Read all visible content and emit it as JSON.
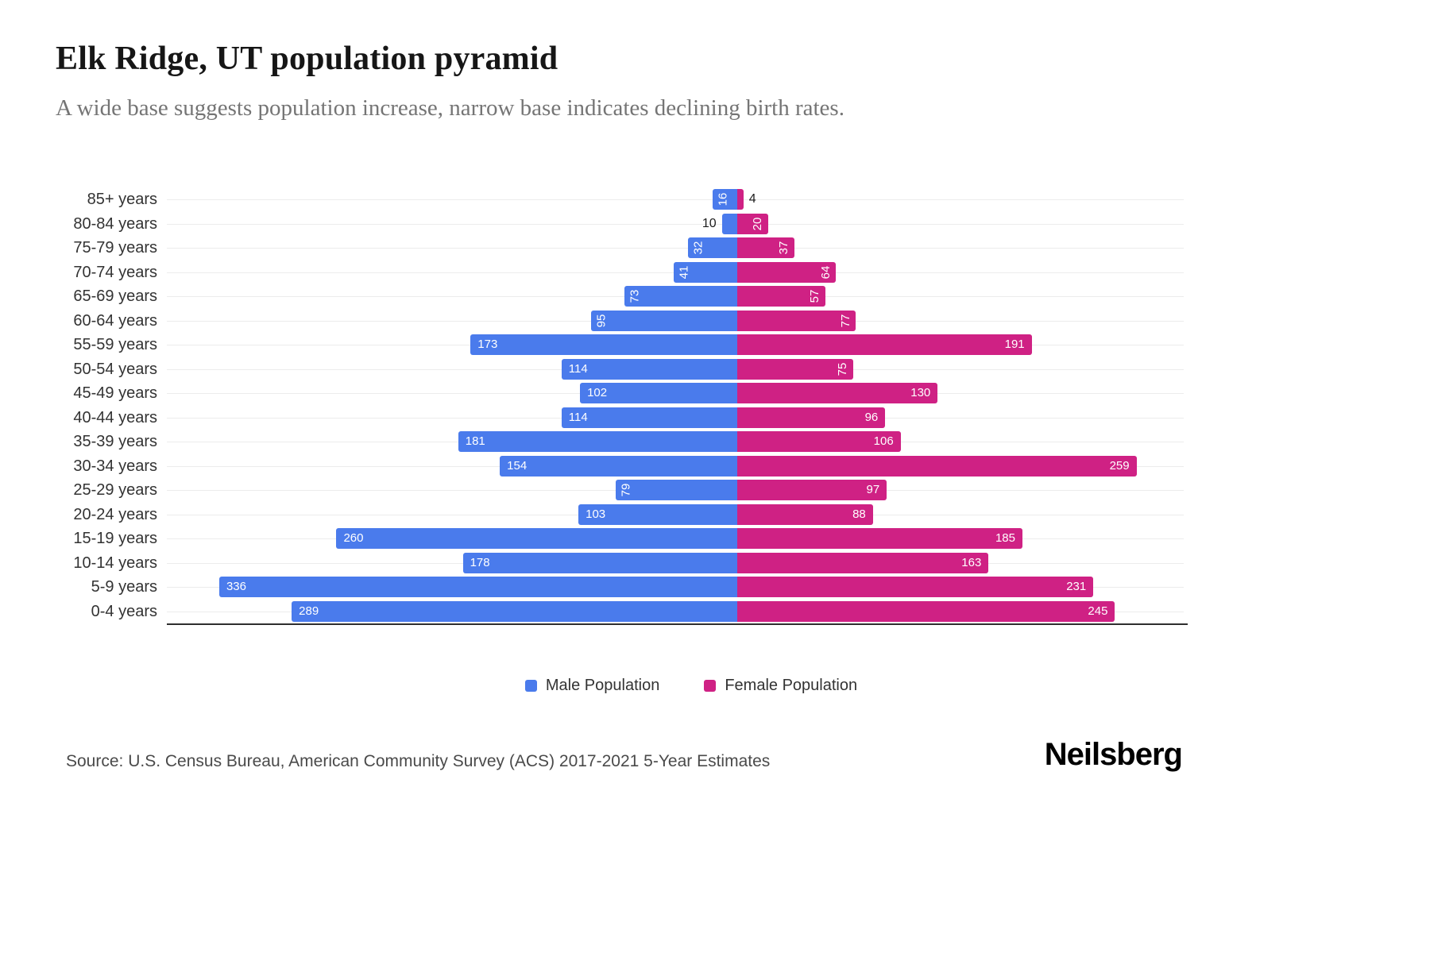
{
  "chart_data": {
    "type": "bar",
    "subtype": "population-pyramid",
    "orientation": "horizontal",
    "title": "Elk Ridge, UT population pyramid",
    "subtitle": "A wide base suggests population increase, narrow base indicates declining birth rates.",
    "categories": [
      "85+ years",
      "80-84 years",
      "75-79 years",
      "70-74 years",
      "65-69 years",
      "60-64 years",
      "55-59 years",
      "50-54 years",
      "45-49 years",
      "40-44 years",
      "35-39 years",
      "30-34 years",
      "25-29 years",
      "20-24 years",
      "15-19 years",
      "10-14 years",
      "5-9 years",
      "0-4 years"
    ],
    "series": [
      {
        "name": "Male Population",
        "color": "#4a7bec",
        "values": [
          16,
          10,
          32,
          41,
          73,
          95,
          173,
          114,
          102,
          114,
          181,
          154,
          79,
          103,
          260,
          178,
          336,
          289
        ]
      },
      {
        "name": "Female Population",
        "color": "#cf2184",
        "values": [
          4,
          20,
          37,
          64,
          57,
          77,
          191,
          75,
          130,
          96,
          106,
          259,
          97,
          88,
          185,
          163,
          231,
          245
        ]
      }
    ],
    "label_layout": [
      [
        "v",
        "out"
      ],
      [
        "out",
        "v"
      ],
      [
        "v",
        "v"
      ],
      [
        "v",
        "v"
      ],
      [
        "v",
        "v"
      ],
      [
        "v",
        "v"
      ],
      [
        "h",
        "h"
      ],
      [
        "h",
        "v"
      ],
      [
        "h",
        "h"
      ],
      [
        "h",
        "h"
      ],
      [
        "h",
        "h"
      ],
      [
        "h",
        "h"
      ],
      [
        "v",
        "h"
      ],
      [
        "h",
        "h"
      ],
      [
        "h",
        "h"
      ],
      [
        "h",
        "h"
      ],
      [
        "h",
        "h"
      ],
      [
        "h",
        "h"
      ]
    ],
    "value_label_color": "#ffffff",
    "outside_label_color": "#1c1c1c",
    "male_axis_max": 370,
    "female_axis_max": 290,
    "grid": true,
    "gridline_color": "#ececec",
    "axis_line_color": "#2f2f2f",
    "legend_position": "bottom"
  },
  "footer": {
    "source": "Source: U.S. Census Bureau, American Community Survey (ACS) 2017-2021 5-Year Estimates",
    "brand": "Neilsberg"
  }
}
